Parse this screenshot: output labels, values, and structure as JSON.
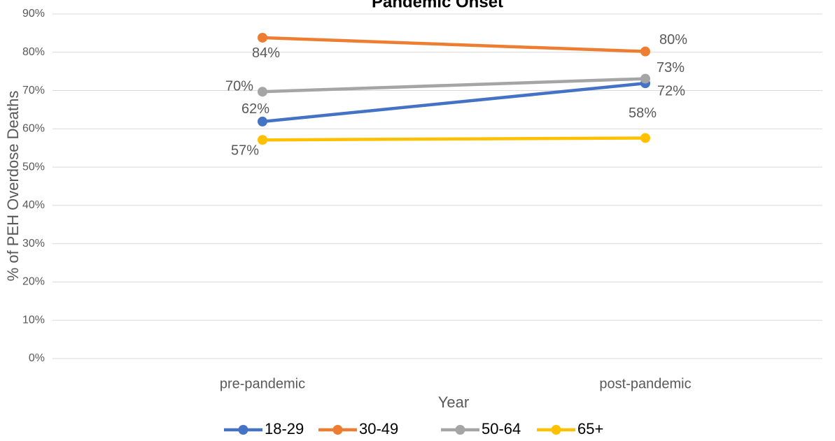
{
  "chart_data": {
    "type": "line",
    "title": "Pandemic Onset",
    "x_label": "Year",
    "y_label": "% of PEH Overdose Deaths",
    "categories": [
      "pre-pandemic",
      "post-pandemic"
    ],
    "series": [
      {
        "name": "18-29",
        "color": "#4472c4",
        "values": [
          61.9,
          71.9
        ],
        "value_labels": [
          "62%",
          "72%"
        ]
      },
      {
        "name": "30-49",
        "color": "#ed7d31",
        "values": [
          83.8,
          80.2
        ],
        "value_labels": [
          "84%",
          "80%"
        ]
      },
      {
        "name": "50-64",
        "color": "#a5a5a5",
        "values": [
          69.7,
          73.1
        ],
        "value_labels": [
          "70%",
          "73%"
        ]
      },
      {
        "name": "65+",
        "color": "#ffc000",
        "values": [
          57.1,
          57.6
        ],
        "value_labels": [
          "57%",
          "58%"
        ]
      }
    ],
    "ylim": [
      0,
      90
    ],
    "yticks": [
      {
        "value": 0,
        "label": "0%"
      },
      {
        "value": 10,
        "label": "10%"
      },
      {
        "value": 20,
        "label": "20%"
      },
      {
        "value": 30,
        "label": "30%"
      },
      {
        "value": 40,
        "label": "40%"
      },
      {
        "value": 50,
        "label": "50%"
      },
      {
        "value": 60,
        "label": "60%"
      },
      {
        "value": 70,
        "label": "70%"
      },
      {
        "value": 80,
        "label": "80%"
      },
      {
        "value": 90,
        "label": "90%"
      }
    ],
    "grid": true,
    "legend": "bottom"
  }
}
